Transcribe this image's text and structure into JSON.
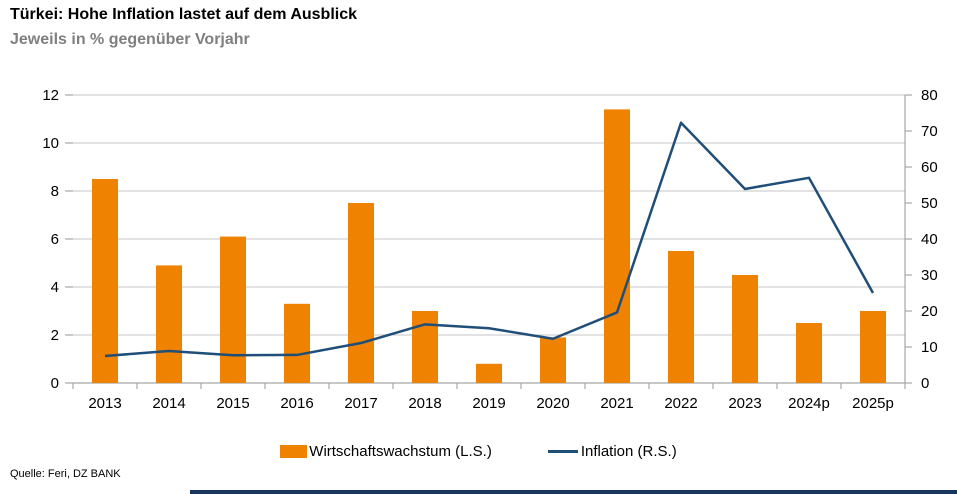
{
  "header": {
    "title": "Türkei: Hohe Inflation lastet auf dem Ausblick",
    "subtitle": "Jeweils in % gegenüber Vorjahr"
  },
  "chart_data": {
    "type": "bar",
    "subtype": "combo-bar-line-dual-axis",
    "title": "Türkei: Hohe Inflation lastet auf dem Ausblick",
    "subtitle": "Jeweils in % gegenüber Vorjahr",
    "categories": [
      "2013",
      "2014",
      "2015",
      "2016",
      "2017",
      "2018",
      "2019",
      "2020",
      "2021",
      "2022",
      "2023",
      "2024p",
      "2025p"
    ],
    "series": [
      {
        "name": "Wirtschaftswachstum (L.S.)",
        "type": "bar",
        "axis": "left",
        "color": "#ef8200",
        "values": [
          8.5,
          4.9,
          6.1,
          3.3,
          7.5,
          3.0,
          0.8,
          1.9,
          11.4,
          5.5,
          4.5,
          2.5,
          3.0
        ]
      },
      {
        "name": "Inflation (R.S.)",
        "type": "line",
        "axis": "right",
        "color": "#1f4e79",
        "values": [
          7.5,
          8.9,
          7.7,
          7.8,
          11.1,
          16.3,
          15.2,
          12.3,
          19.6,
          72.3,
          53.9,
          57.0,
          25.0
        ]
      }
    ],
    "left_axis": {
      "min": 0,
      "max": 12,
      "ticks": [
        "0",
        "2",
        "4",
        "6",
        "8",
        "10",
        "12"
      ]
    },
    "right_axis": {
      "min": 0,
      "max": 80,
      "ticks": [
        "0",
        "10",
        "20",
        "30",
        "40",
        "50",
        "60",
        "70",
        "80"
      ]
    },
    "grid": true,
    "legend_position": "bottom",
    "xlabel": "",
    "ylabel": ""
  },
  "colors": {
    "bar": "#ef8200",
    "line": "#1f4e79",
    "gridline": "#c6c6c6",
    "axis": "#a6a6a6",
    "subtitle": "#7f7f7f",
    "footer_bar": "#17375e"
  },
  "footer": {
    "source": "Quelle: Feri, DZ BANK"
  }
}
